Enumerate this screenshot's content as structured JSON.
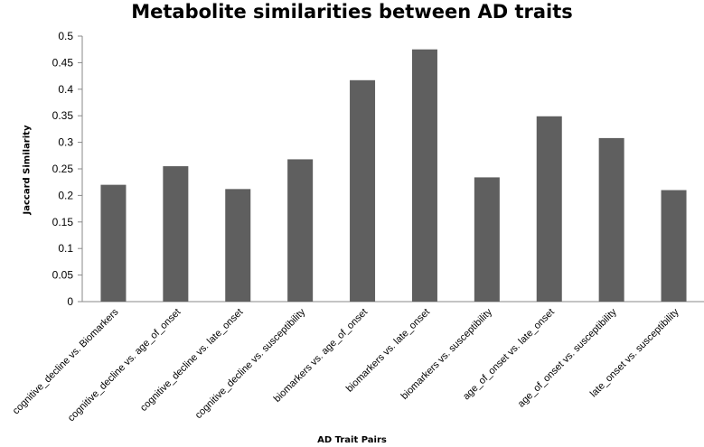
{
  "chart_data": {
    "type": "bar",
    "title": "Metabolite similarities between AD traits",
    "xlabel": "AD Trait Pairs",
    "ylabel": "Jaccard Similarity",
    "ylim": [
      0,
      0.5
    ],
    "yticks": [
      "0",
      "0.05",
      "0.1",
      "0.15",
      "0.2",
      "0.25",
      "0.3",
      "0.35",
      "0.4",
      "0.45",
      "0.5"
    ],
    "categories": [
      "cognitive_decline vs. Biomarkers",
      "cognitive_decline vs. age_of_onset",
      "cognitive_decline vs. late_onset",
      "cognitive_decline vs. susceptibility",
      "biomarkers vs. age_of_onset",
      "biomarkers vs. late_onset",
      "biomarkers vs. susceptibility",
      "age_of_onset vs. late_onset",
      "age_of_onset vs. susceptibility",
      "late_onset vs. susceptibility"
    ],
    "values": [
      0.22,
      0.255,
      0.212,
      0.268,
      0.417,
      0.475,
      0.234,
      0.349,
      0.308,
      0.21
    ],
    "bar_color": "#5f5f5f",
    "grid": false
  }
}
